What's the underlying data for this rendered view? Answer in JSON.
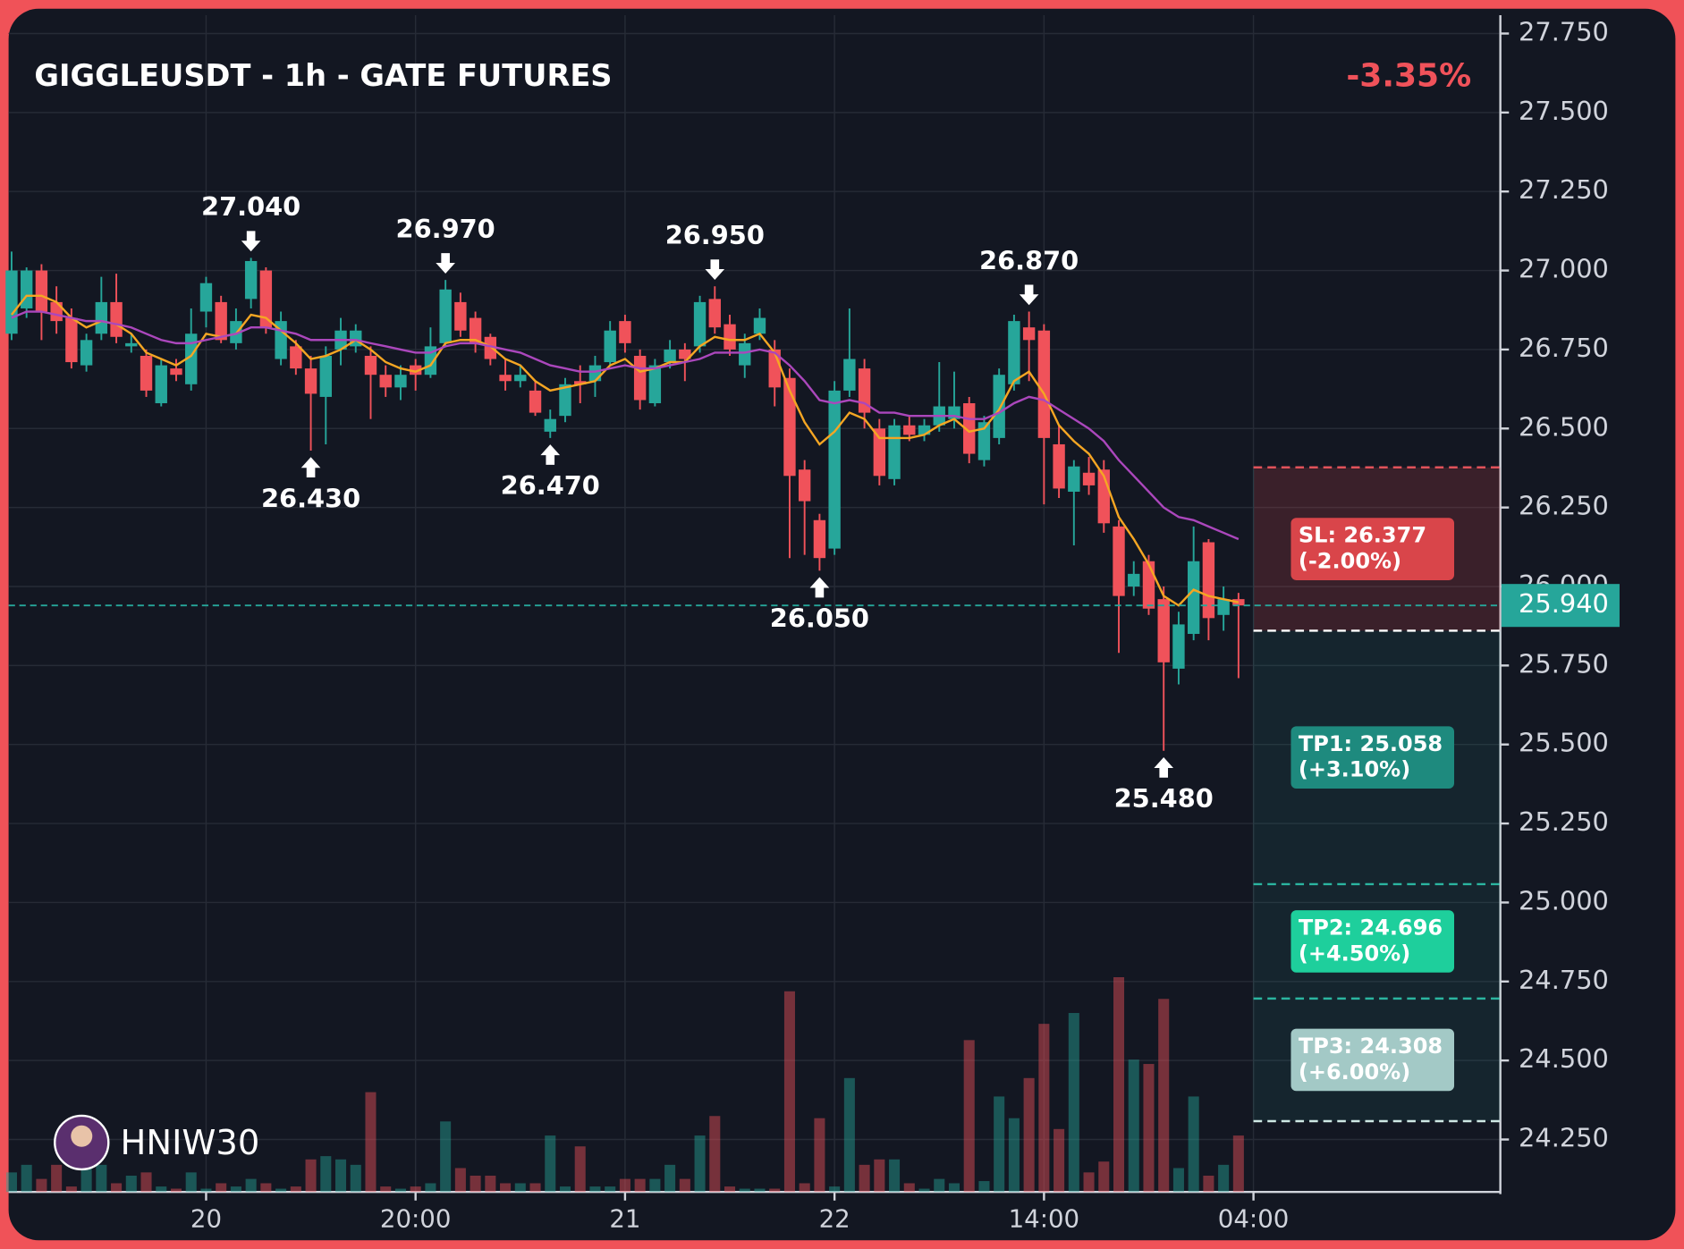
{
  "chart_data": {
    "type": "candlestick",
    "title": "GIGGLEUSDT - 1h - GATE FUTURES",
    "change": "-3.35%",
    "watermark": "HNIW30",
    "up_color": "#26a69a",
    "down_color": "#f0525a",
    "grid": true,
    "xlim": [
      -0.2,
      99.5
    ],
    "xticks": [
      {
        "value": 13,
        "label": "20"
      },
      {
        "value": 27,
        "label": "20:00"
      },
      {
        "value": 41,
        "label": "21"
      },
      {
        "value": 55,
        "label": "22"
      },
      {
        "value": 69,
        "label": "14:00"
      },
      {
        "value": 83,
        "label": "04:00"
      }
    ],
    "ylim": [
      24.084,
      27.808
    ],
    "yticks": [
      {
        "value": 24.25,
        "label": "24.250"
      },
      {
        "value": 24.5,
        "label": "24.500"
      },
      {
        "value": 24.75,
        "label": "24.750"
      },
      {
        "value": 25,
        "label": "25.000"
      },
      {
        "value": 25.25,
        "label": "25.250"
      },
      {
        "value": 25.5,
        "label": "25.500"
      },
      {
        "value": 25.75,
        "label": "25.750"
      },
      {
        "value": 26,
        "label": "26.000"
      },
      {
        "value": 26.25,
        "label": "26.250"
      },
      {
        "value": 26.5,
        "label": "26.500"
      },
      {
        "value": 26.75,
        "label": "26.750"
      },
      {
        "value": 27,
        "label": "27.000"
      },
      {
        "value": 27.25,
        "label": "27.250"
      },
      {
        "value": 27.5,
        "label": "27.500"
      },
      {
        "value": 27.75,
        "label": "27.750"
      }
    ],
    "open": [
      26.8,
      26.88,
      27.0,
      26.9,
      26.85,
      26.7,
      26.8,
      26.9,
      26.76,
      26.73,
      26.58,
      26.69,
      26.64,
      26.87,
      26.9,
      26.77,
      26.91,
      27.0,
      26.72,
      26.76,
      26.69,
      26.6,
      26.75,
      26.76,
      26.73,
      26.67,
      26.63,
      26.7,
      26.67,
      26.77,
      26.9,
      26.85,
      26.79,
      26.67,
      26.65,
      26.62,
      26.49,
      26.54,
      26.65,
      26.65,
      26.71,
      26.84,
      26.73,
      26.58,
      26.71,
      26.75,
      26.76,
      26.91,
      26.83,
      26.7,
      26.8,
      26.75,
      26.66,
      26.37,
      26.21,
      26.12,
      26.62,
      26.69,
      26.5,
      26.34,
      26.51,
      26.48,
      26.51,
      26.53,
      26.58,
      26.4,
      26.47,
      26.64,
      26.82,
      26.81,
      26.45,
      26.3,
      26.36,
      26.37,
      26.19,
      26.0,
      26.08,
      25.96,
      25.74,
      25.85,
      26.14,
      25.91,
      25.96
    ],
    "high": [
      27.06,
      27.01,
      27.02,
      26.95,
      26.88,
      26.8,
      26.98,
      26.99,
      26.8,
      26.75,
      26.72,
      26.72,
      26.88,
      26.98,
      26.92,
      26.88,
      27.04,
      27.01,
      26.87,
      26.78,
      26.73,
      26.76,
      26.85,
      26.83,
      26.76,
      26.7,
      26.7,
      26.72,
      26.82,
      26.97,
      26.93,
      26.87,
      26.8,
      26.72,
      26.7,
      26.65,
      26.56,
      26.66,
      26.7,
      26.73,
      26.84,
      26.86,
      26.75,
      26.72,
      26.78,
      26.77,
      26.92,
      26.95,
      26.86,
      26.8,
      26.88,
      26.78,
      26.69,
      26.4,
      26.23,
      26.65,
      26.88,
      26.72,
      26.53,
      26.53,
      26.54,
      26.53,
      26.71,
      26.68,
      26.6,
      26.54,
      26.69,
      26.86,
      26.87,
      26.83,
      26.51,
      26.4,
      26.41,
      26.4,
      26.21,
      26.08,
      26.1,
      26.0,
      25.92,
      26.19,
      26.15,
      26.0,
      25.98
    ],
    "low": [
      26.78,
      26.85,
      26.78,
      26.8,
      26.69,
      26.68,
      26.78,
      26.77,
      26.74,
      26.6,
      26.57,
      26.65,
      26.62,
      26.82,
      26.77,
      26.75,
      26.88,
      26.8,
      26.7,
      26.67,
      26.43,
      26.45,
      26.7,
      26.74,
      26.53,
      26.6,
      26.59,
      26.62,
      26.66,
      26.76,
      26.79,
      26.74,
      26.7,
      26.62,
      26.63,
      26.54,
      26.47,
      26.52,
      26.58,
      26.6,
      26.7,
      26.74,
      26.56,
      26.57,
      26.69,
      26.65,
      26.74,
      26.8,
      26.73,
      26.66,
      26.78,
      26.57,
      26.09,
      26.1,
      26.05,
      26.1,
      26.6,
      26.5,
      26.32,
      26.32,
      26.46,
      26.46,
      26.49,
      26.5,
      26.39,
      26.38,
      26.45,
      26.62,
      26.65,
      26.26,
      26.28,
      26.13,
      26.29,
      26.17,
      25.79,
      25.97,
      25.91,
      25.48,
      25.69,
      25.83,
      25.83,
      25.86,
      25.71
    ],
    "close": [
      27.0,
      27.0,
      26.87,
      26.84,
      26.71,
      26.78,
      26.9,
      26.79,
      26.77,
      26.62,
      26.7,
      26.67,
      26.8,
      26.96,
      26.78,
      26.84,
      27.03,
      26.82,
      26.84,
      26.69,
      26.61,
      26.73,
      26.81,
      26.81,
      26.67,
      26.63,
      26.67,
      26.67,
      26.76,
      26.94,
      26.81,
      26.77,
      26.72,
      26.65,
      26.67,
      26.55,
      26.53,
      26.64,
      26.64,
      26.7,
      26.81,
      26.77,
      26.59,
      26.7,
      26.75,
      26.72,
      26.9,
      26.82,
      26.75,
      26.77,
      26.85,
      26.63,
      26.35,
      26.27,
      26.09,
      26.62,
      26.72,
      26.55,
      26.35,
      26.51,
      26.48,
      26.51,
      26.57,
      26.57,
      26.42,
      26.52,
      26.67,
      26.84,
      26.78,
      26.47,
      26.31,
      26.38,
      26.32,
      26.2,
      25.97,
      26.04,
      25.93,
      25.76,
      25.88,
      26.08,
      25.9,
      25.96,
      25.94
    ],
    "volume": [
      18,
      25,
      12,
      25,
      5,
      25,
      25,
      8,
      15,
      18,
      5,
      3,
      18,
      3,
      8,
      5,
      12,
      8,
      3,
      5,
      30,
      33,
      30,
      25,
      92,
      5,
      3,
      5,
      8,
      65,
      22,
      15,
      15,
      8,
      8,
      8,
      52,
      5,
      42,
      5,
      5,
      12,
      12,
      12,
      25,
      12,
      52,
      70,
      5,
      3,
      3,
      3,
      185,
      8,
      68,
      5,
      105,
      25,
      30,
      30,
      8,
      3,
      12,
      8,
      140,
      10,
      88,
      68,
      105,
      155,
      58,
      165,
      18,
      28,
      198,
      122,
      118,
      178,
      22,
      88,
      15,
      25,
      52
    ],
    "lines": [
      {
        "color": "#f5a623",
        "values": [
          26.86,
          26.92,
          26.92,
          26.9,
          26.85,
          26.82,
          26.84,
          26.83,
          26.8,
          26.74,
          26.72,
          26.7,
          26.73,
          26.8,
          26.79,
          26.8,
          26.86,
          26.85,
          26.81,
          26.77,
          26.72,
          26.73,
          26.75,
          26.78,
          26.75,
          26.71,
          26.69,
          26.68,
          26.7,
          26.77,
          26.78,
          26.78,
          26.76,
          26.72,
          26.7,
          26.65,
          26.62,
          26.63,
          26.64,
          26.65,
          26.7,
          26.72,
          26.68,
          26.69,
          26.71,
          26.71,
          26.76,
          26.79,
          26.78,
          26.78,
          26.8,
          26.74,
          26.62,
          26.52,
          26.45,
          26.49,
          26.55,
          26.53,
          26.47,
          26.47,
          26.47,
          26.48,
          26.51,
          26.53,
          26.49,
          26.5,
          26.56,
          26.65,
          26.68,
          26.61,
          26.51,
          26.46,
          26.42,
          26.35,
          26.22,
          26.15,
          26.07,
          25.97,
          25.94,
          25.99,
          25.97,
          25.96,
          25.95
        ]
      },
      {
        "color": "#ab47bc",
        "values": [
          26.85,
          26.87,
          26.87,
          26.86,
          26.85,
          26.84,
          26.84,
          26.83,
          26.82,
          26.8,
          26.78,
          26.77,
          26.77,
          26.78,
          26.79,
          26.8,
          26.82,
          26.82,
          26.81,
          26.8,
          26.78,
          26.78,
          26.78,
          26.78,
          26.77,
          26.76,
          26.75,
          26.74,
          26.74,
          26.76,
          26.77,
          26.77,
          26.76,
          26.75,
          26.74,
          26.72,
          26.7,
          26.69,
          26.68,
          26.68,
          26.69,
          26.7,
          26.69,
          26.69,
          26.7,
          26.71,
          26.72,
          26.74,
          26.74,
          26.74,
          26.75,
          26.74,
          26.7,
          26.65,
          26.59,
          26.58,
          26.59,
          26.58,
          26.55,
          26.55,
          26.54,
          26.54,
          26.54,
          26.54,
          26.53,
          26.53,
          26.55,
          26.58,
          26.6,
          26.59,
          26.56,
          26.53,
          26.5,
          26.46,
          26.4,
          26.35,
          26.3,
          26.25,
          26.22,
          26.21,
          26.19,
          26.17,
          26.15
        ]
      }
    ],
    "annotations": [
      {
        "x": 16,
        "value": 27.04,
        "label": "27.040",
        "position": "above"
      },
      {
        "x": 20,
        "value": 26.43,
        "label": "26.430",
        "position": "below"
      },
      {
        "x": 29,
        "value": 26.97,
        "label": "26.970",
        "position": "above"
      },
      {
        "x": 36,
        "value": 26.47,
        "label": "26.470",
        "position": "below"
      },
      {
        "x": 47,
        "value": 26.95,
        "label": "26.950",
        "position": "above"
      },
      {
        "x": 54,
        "value": 26.05,
        "label": "26.050",
        "position": "below"
      },
      {
        "x": 68,
        "value": 26.87,
        "label": "26.870",
        "position": "above"
      },
      {
        "x": 77,
        "value": 25.48,
        "label": "25.480",
        "position": "below"
      }
    ],
    "last_price": {
      "value": 25.94,
      "label": "25.940"
    },
    "entry": 25.86,
    "zone_start": 83,
    "levels": [
      {
        "value": 26.377,
        "label": "SL: 26.377",
        "note": "(-2.00%)",
        "color": "#d9454a"
      },
      {
        "value": 25.058,
        "label": "TP1: 25.058",
        "note": "(+3.10%)",
        "color": "#1e8a7e"
      },
      {
        "value": 24.696,
        "label": "TP2: 24.696",
        "note": "(+4.50%)",
        "color": "#1ecf9c"
      },
      {
        "value": 24.308,
        "label": "TP3: 24.308",
        "note": "(+6.00%)",
        "color": "#a3c9c6"
      }
    ]
  }
}
